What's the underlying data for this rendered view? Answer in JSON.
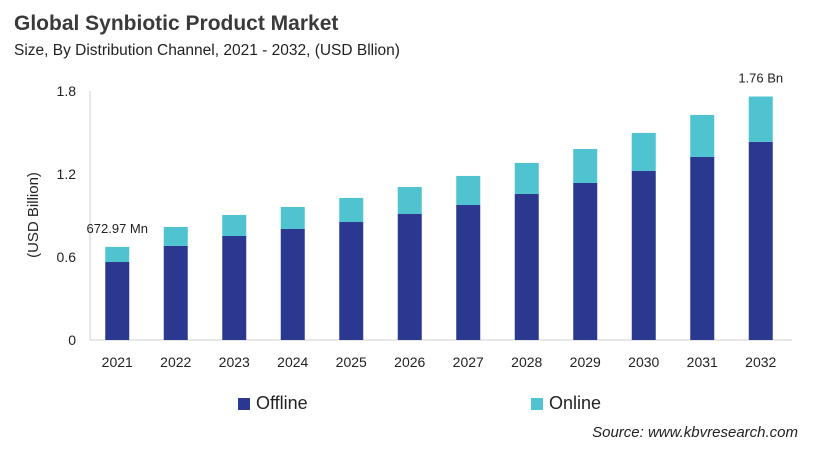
{
  "chart_data": {
    "type": "bar",
    "stacked": true,
    "title": "Global Synbiotic Product Market",
    "subtitle": "Size, By Distribution Channel, 2021 - 2032, (USD Bllion)",
    "ylabel": "(USD Billion)",
    "xlabel": "",
    "ylim": [
      0,
      1.8
    ],
    "yticks": [
      "0",
      "0.6",
      "1.2",
      "1.8"
    ],
    "categories": [
      "2021",
      "2022",
      "2023",
      "2024",
      "2025",
      "2026",
      "2027",
      "2028",
      "2029",
      "2030",
      "2031",
      "2032"
    ],
    "series": [
      {
        "name": "Offline",
        "color": "#2b388f",
        "values": [
          0.564,
          0.68,
          0.752,
          0.803,
          0.853,
          0.911,
          0.976,
          1.056,
          1.135,
          1.222,
          1.323,
          1.432
        ]
      },
      {
        "name": "Online",
        "color": "#4fc3cf",
        "values": [
          0.109,
          0.137,
          0.152,
          0.159,
          0.174,
          0.195,
          0.21,
          0.224,
          0.246,
          0.275,
          0.304,
          0.328
        ]
      }
    ],
    "annotations": [
      {
        "category": "2021",
        "text": "672.97 Mn"
      },
      {
        "category": "2032",
        "text": "1.76 Bn"
      }
    ],
    "legend_position": "bottom",
    "grid": false
  },
  "source": "Source: www.kbvresearch.com"
}
